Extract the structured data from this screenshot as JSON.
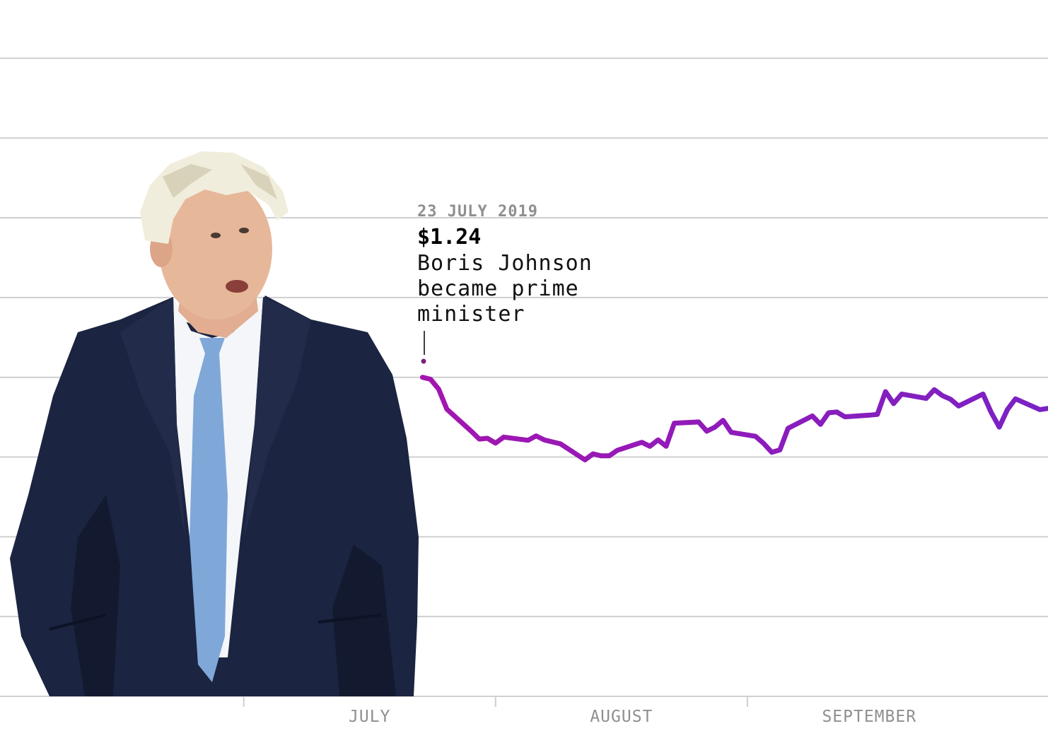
{
  "colors": {
    "line_start": "#a315b0",
    "line_end": "#7a22c4",
    "grid": "#cfcfcf",
    "tick_label": "#8f8f8f",
    "suit": "#1b2440",
    "shirt": "#f4f6f9",
    "tie": "#7fa8d8",
    "skin": "#e7b79a",
    "hair": "#f1eddc"
  },
  "photo": {
    "icon": "portrait-photo"
  },
  "annotation": {
    "date": "23 JULY 2019",
    "value": "$1.24",
    "lines": [
      "Boris Johnson",
      "became prime",
      "minister"
    ]
  },
  "chart_data": {
    "type": "line",
    "title": "",
    "xlabel": "",
    "ylabel": "",
    "x_ticks": [
      "JULY",
      "AUGUST",
      "SEPTEMBER"
    ],
    "ylim": [
      1.16,
      1.33
    ],
    "y_grid": [
      1.16,
      1.18,
      1.2,
      1.22,
      1.24,
      1.26,
      1.28,
      1.3,
      1.32
    ],
    "grid": true,
    "series": [
      {
        "x": [
          "2019-07-23",
          "2019-07-24",
          "2019-07-25",
          "2019-07-26",
          "2019-07-29",
          "2019-07-30",
          "2019-07-31",
          "2019-08-01",
          "2019-08-02",
          "2019-08-05",
          "2019-08-06",
          "2019-08-07",
          "2019-08-08",
          "2019-08-09",
          "2019-08-12",
          "2019-08-13",
          "2019-08-14",
          "2019-08-15",
          "2019-08-16",
          "2019-08-19",
          "2019-08-20",
          "2019-08-21",
          "2019-08-22",
          "2019-08-23",
          "2019-08-26",
          "2019-08-27",
          "2019-08-28",
          "2019-08-29",
          "2019-08-30",
          "2019-09-02",
          "2019-09-03",
          "2019-09-04",
          "2019-09-05",
          "2019-09-06",
          "2019-09-09",
          "2019-09-10",
          "2019-09-11",
          "2019-09-12",
          "2019-09-13",
          "2019-09-16",
          "2019-09-17",
          "2019-09-18",
          "2019-09-19",
          "2019-09-20",
          "2019-09-23",
          "2019-09-24",
          "2019-09-25",
          "2019-09-26",
          "2019-09-27",
          "2019-09-30",
          "2019-10-01",
          "2019-10-02",
          "2019-10-03",
          "2019-10-04",
          "2019-10-07",
          "2019-10-08"
        ],
        "values": [
          1.24,
          1.2395,
          1.237,
          1.232,
          1.2265,
          1.2245,
          1.2247,
          1.2235,
          1.225,
          1.2242,
          1.2253,
          1.2243,
          1.2238,
          1.2233,
          1.2193,
          1.2208,
          1.2203,
          1.2203,
          1.2217,
          1.2237,
          1.2227,
          1.2243,
          1.2227,
          1.2285,
          1.2288,
          1.2265,
          1.2275,
          1.2292,
          1.2262,
          1.2252,
          1.2234,
          1.2212,
          1.2218,
          1.2272,
          1.2303,
          1.2282,
          1.2311,
          1.2313,
          1.2301,
          1.2305,
          1.2307,
          1.2364,
          1.2334,
          1.2358,
          1.2347,
          1.2369,
          1.2354,
          1.2345,
          1.2328,
          1.2358,
          1.2312,
          1.2275,
          1.2319,
          1.2346,
          1.2319,
          1.2322
        ]
      }
    ]
  }
}
